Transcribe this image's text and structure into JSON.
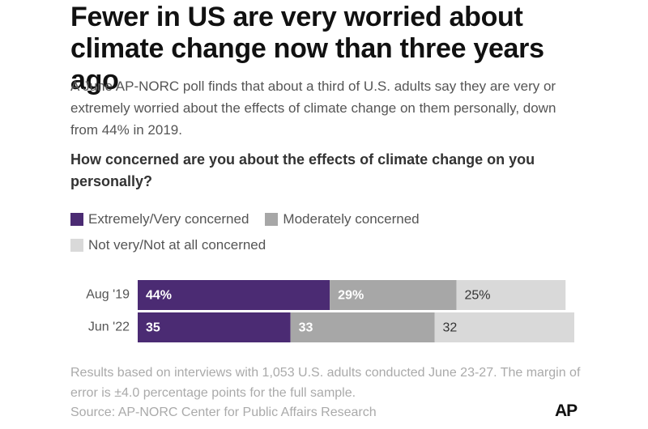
{
  "chart_data": {
    "type": "bar",
    "orientation": "horizontal",
    "stacked": true,
    "title": "Fewer in US are very worried about climate change now than three years ago",
    "subtitle": "A June AP-NORC poll finds that about a third of U.S. adults say they are very or extremely worried about the effects of climate change on them personally, down from 44% in 2019.",
    "question": "How concerned are you about the effects of climate change on you personally?",
    "categories": [
      "Aug '19",
      "Jun '22"
    ],
    "series": [
      {
        "name": "Extremely/Very concerned",
        "color": "#4b2b73",
        "label_color": "#ffffff",
        "values": [
          44,
          35
        ],
        "value_labels": [
          "44%",
          "35"
        ]
      },
      {
        "name": "Moderately concerned",
        "color": "#a7a7a7",
        "label_color": "#ffffff",
        "values": [
          29,
          33
        ],
        "value_labels": [
          "29%",
          "33"
        ]
      },
      {
        "name": "Not very/Not at all concerned",
        "color": "#d9d9d9",
        "label_color": "#333333",
        "values": [
          25,
          32
        ],
        "value_labels": [
          "25%",
          "32"
        ]
      }
    ],
    "note": "Results based on interviews with 1,053 U.S. adults conducted June 23-27. The margin of error is ±4.0 percentage points for the full sample.",
    "source": "Source: AP-NORC Center for Public Affairs Research",
    "credit": "AP"
  }
}
